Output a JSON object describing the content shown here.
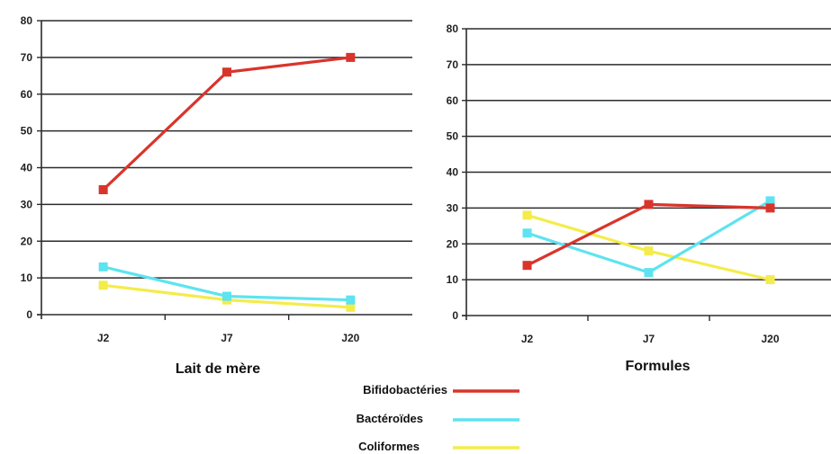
{
  "chart_data": [
    {
      "type": "line",
      "title": "Lait de mère",
      "categories": [
        "J2",
        "J7",
        "J20"
      ],
      "ylim": [
        0,
        80
      ],
      "yticks": [
        0,
        10,
        20,
        30,
        40,
        50,
        60,
        70,
        80
      ],
      "grid": true,
      "series": [
        {
          "name": "Bifidobactéries",
          "values": [
            34,
            66,
            70
          ],
          "color": "#d9342b"
        },
        {
          "name": "Bactéroïdes",
          "values": [
            13,
            5,
            4
          ],
          "color": "#5ee3f0"
        },
        {
          "name": "Coliformes",
          "values": [
            8,
            4,
            2
          ],
          "color": "#f4ec4a"
        }
      ]
    },
    {
      "type": "line",
      "title": "Formules",
      "categories": [
        "J2",
        "J7",
        "J20"
      ],
      "ylim": [
        0,
        80
      ],
      "yticks": [
        0,
        10,
        20,
        30,
        40,
        50,
        60,
        70,
        80
      ],
      "grid": true,
      "series": [
        {
          "name": "Bifidobactéries",
          "values": [
            14,
            31,
            30
          ],
          "color": "#d9342b"
        },
        {
          "name": "Bactéroïdes",
          "values": [
            23,
            12,
            32
          ],
          "color": "#5ee3f0"
        },
        {
          "name": "Coliformes",
          "values": [
            28,
            18,
            10
          ],
          "color": "#f4ec4a"
        }
      ]
    }
  ],
  "legend": {
    "placement": "bottom-center",
    "entries": [
      {
        "label": "Bifidobactéries",
        "color": "#d9342b"
      },
      {
        "label": "Bactéroïdes",
        "color": "#5ee3f0"
      },
      {
        "label": "Coliformes",
        "color": "#f4ec4a"
      }
    ]
  }
}
